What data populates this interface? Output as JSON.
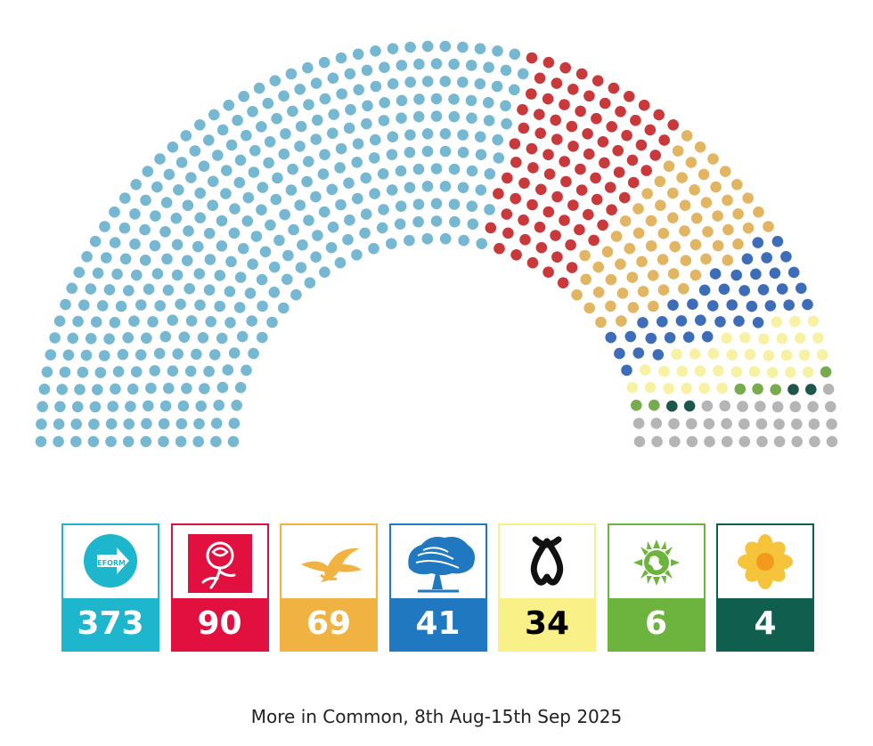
{
  "chart_data": {
    "type": "parliament",
    "series": [
      {
        "name": "REFORM UK",
        "value": 373,
        "color": "#76b8d2",
        "card_color": "#1eb6cc",
        "icon": "reform-arrow-icon"
      },
      {
        "value": 90,
        "color": "#c9383b",
        "card_color": "#e2103e",
        "icon": "rose-icon"
      },
      {
        "value": 69,
        "color": "#e2b562",
        "card_color": "#f0b341",
        "icon": "dove-icon"
      },
      {
        "value": 41,
        "color": "#3d6db8",
        "card_color": "#1f78c0",
        "icon": "oak-tree-icon"
      },
      {
        "value": 34,
        "color": "#f7f1a4",
        "card_color": "#f9f187",
        "text_color": "#000000",
        "icon": "snp-knot-icon"
      },
      {
        "value": 6,
        "color": "#76ab4e",
        "card_color": "#6db43e",
        "icon": "earth-icon"
      },
      {
        "value": 4,
        "color": "#1e564b",
        "card_color": "#105e4e",
        "icon": "daffodil-icon"
      },
      {
        "value": 33,
        "color": "#b5b5b7"
      }
    ],
    "total_seats": 650,
    "source": "More in Common, 8th Aug-15th Sep 2025"
  }
}
